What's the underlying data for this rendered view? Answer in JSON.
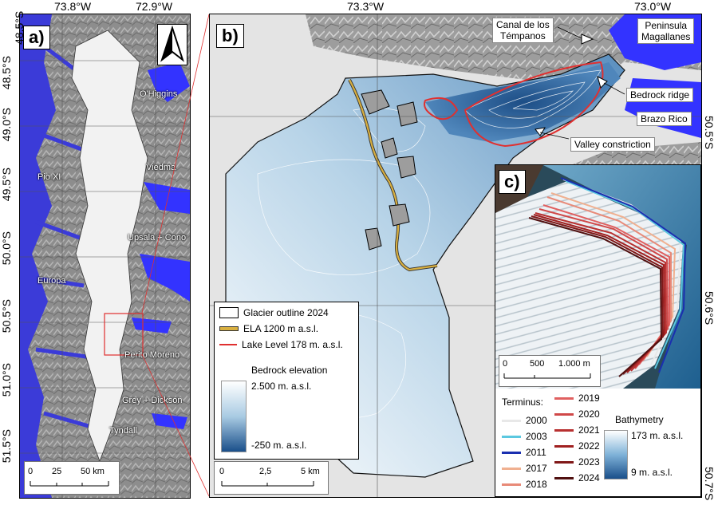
{
  "panel_a": {
    "label": "a)",
    "top_lons": [
      "73.8°W",
      "72.9°W"
    ],
    "lats": [
      "48.5°S",
      "49.0°S",
      "49.5°S",
      "50.0°S",
      "50.5°S",
      "51.0°S",
      "51.5°S"
    ],
    "glaciers": [
      "O'Higgins",
      "Viedma",
      "Pio XI",
      "Upsala + Cono",
      "Europa",
      "Perito Moreno",
      "Grey + Dickson",
      "Tyndall"
    ],
    "scale": {
      "ticks": [
        "0",
        "25",
        "50 km"
      ]
    },
    "north_arrow": "north-arrow-icon"
  },
  "panel_b": {
    "label": "b)",
    "top_lons": [
      "73.3°W",
      "73.0°W"
    ],
    "right_lat": "50.5°S",
    "callouts": {
      "canal": "Canal de los\nTémpanos",
      "peninsula": "Peninsula\nMagallanes",
      "bedrock_ridge": "Bedrock ridge",
      "brazo_rico": "Brazo Rico",
      "valley": "Valley constriction"
    },
    "legend": {
      "outline": "Glacier outline 2024",
      "ela": "ELA 1200 m a.s.l.",
      "lake": "Lake Level 178 m. a.s.l.",
      "elev_title": "Bedrock elevation",
      "elev_max": "2.500 m. a.s.l.",
      "elev_min": "-250 m. a.s.l."
    },
    "scale": {
      "ticks": [
        "0",
        "2,5",
        "5 km"
      ]
    }
  },
  "panel_c": {
    "label": "c)",
    "right_lats": [
      "50.6°S",
      "50.7°S"
    ],
    "scale": {
      "ticks": [
        "0",
        "500",
        "1.000 m"
      ]
    },
    "legend": {
      "title": "Terminus:",
      "years": [
        {
          "year": "2000",
          "color": "#e8e8e8"
        },
        {
          "year": "2003",
          "color": "#5bc8e0"
        },
        {
          "year": "2011",
          "color": "#1a2fb0"
        },
        {
          "year": "2017",
          "color": "#f0b090"
        },
        {
          "year": "2018",
          "color": "#e88a78"
        },
        {
          "year": "2019",
          "color": "#e06060"
        },
        {
          "year": "2020",
          "color": "#d04848"
        },
        {
          "year": "2021",
          "color": "#b83030"
        },
        {
          "year": "2022",
          "color": "#a02020"
        },
        {
          "year": "2023",
          "color": "#801818"
        },
        {
          "year": "2024",
          "color": "#501010"
        }
      ],
      "bathy_title": "Bathymetry",
      "bathy_max": "173 m. a.s.l.",
      "bathy_min": "9 m. a.s.l."
    }
  },
  "colors": {
    "water": "#3333ff",
    "ice_blue_dark": "#1a4f8a",
    "ice_blue_light": "#e9f1f8",
    "ela": "#c8a030",
    "lake_line": "#e03030"
  }
}
